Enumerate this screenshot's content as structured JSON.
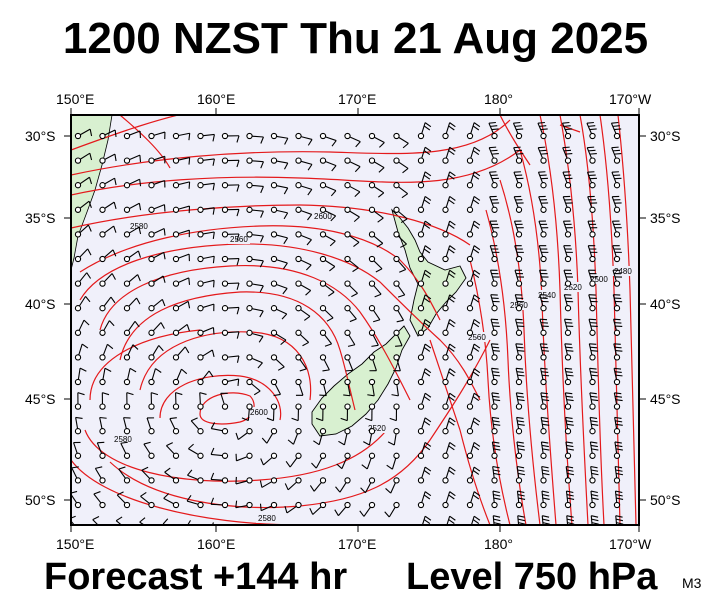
{
  "header": {
    "title": "1200 NZST Thu 21 Aug 2025"
  },
  "footer": {
    "forecast": "Forecast +144 hr",
    "level": "Level 750 hPa",
    "tag": "M3"
  },
  "map": {
    "lon_labels": [
      "150°E",
      "160°E",
      "170°E",
      "180°",
      "170°W"
    ],
    "lat_labels": [
      "30°S",
      "35°S",
      "40°S",
      "45°S",
      "50°S"
    ],
    "contour_labels": [
      "2580",
      "2560",
      "2600",
      "2600",
      "2560",
      "2540",
      "2520",
      "2500",
      "2480",
      "2560",
      "2520",
      "2580",
      "2580",
      "2560"
    ],
    "colors": {
      "background": "#f0f0fa",
      "land": "#d8f0d0",
      "contour": "#e41a1c",
      "frame": "#000000"
    }
  }
}
